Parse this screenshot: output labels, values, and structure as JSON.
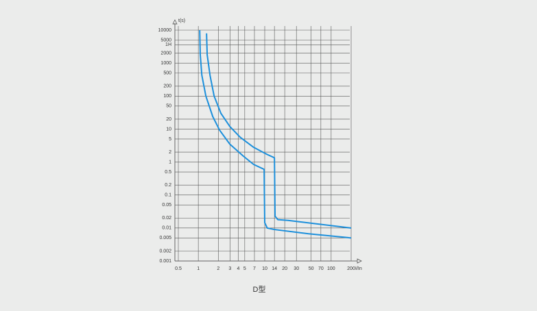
{
  "chart_data": {
    "type": "line",
    "caption": "D型",
    "y_label": "t(s)",
    "x_label": "I/In",
    "xscale": "log",
    "yscale": "log",
    "grid": true,
    "xlim": [
      0.5,
      200
    ],
    "xticks": [
      0.5,
      1,
      2,
      3,
      4,
      5,
      7,
      10,
      14,
      20,
      30,
      50,
      70,
      100,
      200
    ],
    "ylim": [
      0.001,
      10000
    ],
    "yticks": [
      10000,
      5000,
      {
        "value": 3600,
        "label": "1H"
      },
      2000,
      1000,
      500,
      200,
      100,
      50,
      20,
      10,
      5,
      2,
      1,
      0.5,
      0.2,
      0.1,
      0.05,
      0.02,
      0.01,
      0.005,
      0.002,
      0.001
    ],
    "series": [
      {
        "color": "#1b8fdb",
        "x": [
          1.05,
          1.07,
          1.13,
          1.3,
          1.65,
          2.09,
          2.98,
          4.79,
          6.8,
          9.8,
          10,
          10.9,
          14,
          45.6,
          200
        ],
        "values": [
          10000,
          1780,
          430,
          100,
          24,
          9.3,
          3.5,
          1.5,
          0.85,
          0.6,
          0.0145,
          0.01,
          0.009,
          0.0067,
          0.005
        ]
      },
      {
        "color": "#1b8fdb",
        "x": [
          1.33,
          1.36,
          1.5,
          1.73,
          2.19,
          2.98,
          4.25,
          6.8,
          10.9,
          14,
          14.3,
          15.7,
          22.5,
          200
        ],
        "values": [
          8000,
          1800,
          430,
          100,
          30,
          12,
          5.7,
          2.8,
          1.7,
          1.35,
          0.023,
          0.018,
          0.017,
          0.01
        ]
      }
    ]
  }
}
